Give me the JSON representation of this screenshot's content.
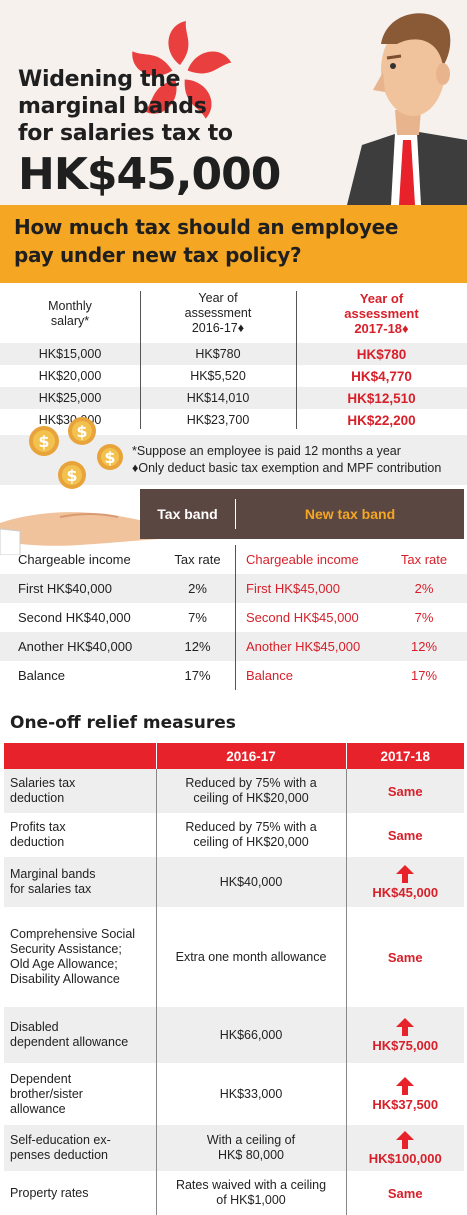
{
  "header": {
    "title_line1": "Widening the",
    "title_line2": "marginal bands",
    "title_line3": "for salaries tax to",
    "title_amount": "HK$45,000"
  },
  "banner": {
    "question_line1": "How much tax should an employee",
    "question_line2": "pay under new tax policy?"
  },
  "comparison": {
    "headers": {
      "salary": [
        "Monthly",
        "salary*"
      ],
      "old": [
        "Year of",
        "assessment",
        "2016-17♦"
      ],
      "new": [
        "Year of",
        "assessment",
        "2017-18♦"
      ]
    },
    "rows": [
      {
        "salary": "HK$15,000",
        "old": "HK$780",
        "new": "HK$780"
      },
      {
        "salary": "HK$20,000",
        "old": "HK$5,520",
        "new": "HK$4,770"
      },
      {
        "salary": "HK$25,000",
        "old": "HK$14,010",
        "new": "HK$12,510"
      },
      {
        "salary": "HK$30,000",
        "old": "HK$23,700",
        "new": "HK$22,200"
      }
    ]
  },
  "notes": {
    "note1": "*Suppose an employee is paid 12 months a year",
    "note2": "♦Only deduct basic tax exemption and MPF contribution"
  },
  "tax_band": {
    "head_old": "Tax band",
    "head_new": "New tax band",
    "col_income": "Chargeable income",
    "col_rate": "Tax rate",
    "rows": [
      {
        "old_income": "First HK$40,000",
        "old_rate": "2%",
        "new_income": "First HK$45,000",
        "new_rate": "2%"
      },
      {
        "old_income": "Second HK$40,000",
        "old_rate": "7%",
        "new_income": "Second HK$45,000",
        "new_rate": "7%"
      },
      {
        "old_income": "Another HK$40,000",
        "old_rate": "12%",
        "new_income": "Another HK$45,000",
        "new_rate": "12%"
      },
      {
        "old_income": "Balance",
        "old_rate": "17%",
        "new_income": "Balance",
        "new_rate": "17%"
      }
    ]
  },
  "relief": {
    "title": "One-off relief measures",
    "col_2016": "2016-17",
    "col_2017": "2017-18",
    "rows": [
      {
        "label": [
          "Salaries tax",
          "deduction"
        ],
        "y2016": [
          "Reduced by 75% with a",
          "ceiling of HK$20,000"
        ],
        "y2017": "Same",
        "arrow": false
      },
      {
        "label": [
          "Profits tax",
          "deduction"
        ],
        "y2016": [
          "Reduced by 75% with a",
          "ceiling of HK$20,000"
        ],
        "y2017": "Same",
        "arrow": false
      },
      {
        "label": [
          "Marginal bands",
          "for salaries tax"
        ],
        "y2016": [
          "HK$40,000"
        ],
        "y2017": "HK$45,000",
        "arrow": true
      },
      {
        "label": [
          "Comprehensive Social",
          "Security Assistance;",
          "Old Age Allowance;",
          "Disability Allowance"
        ],
        "y2016": [
          "Extra one month allowance"
        ],
        "y2017": "Same",
        "arrow": false
      },
      {
        "label": [
          "Disabled",
          "dependent allowance"
        ],
        "y2016": [
          "HK$66,000"
        ],
        "y2017": "HK$75,000",
        "arrow": true
      },
      {
        "label": [
          "Dependent",
          "brother/sister",
          "allowance"
        ],
        "y2016": [
          "HK$33,000"
        ],
        "y2017": "HK$37,500",
        "arrow": true
      },
      {
        "label": [
          "Self-education ex-",
          "penses deduction"
        ],
        "y2016": [
          "With a ceiling of",
          "HK$ 80,000"
        ],
        "y2017": "HK$100,000",
        "arrow": true
      },
      {
        "label": [
          "Property rates"
        ],
        "y2016": [
          "Rates waived with a ceiling",
          "of HK$1,000"
        ],
        "y2017": "Same",
        "arrow": false
      }
    ]
  },
  "colors": {
    "accent_red": "#e8222b",
    "text_red": "#d7202a",
    "banner_orange": "#f5a623",
    "band_brown": "#5b4742"
  }
}
